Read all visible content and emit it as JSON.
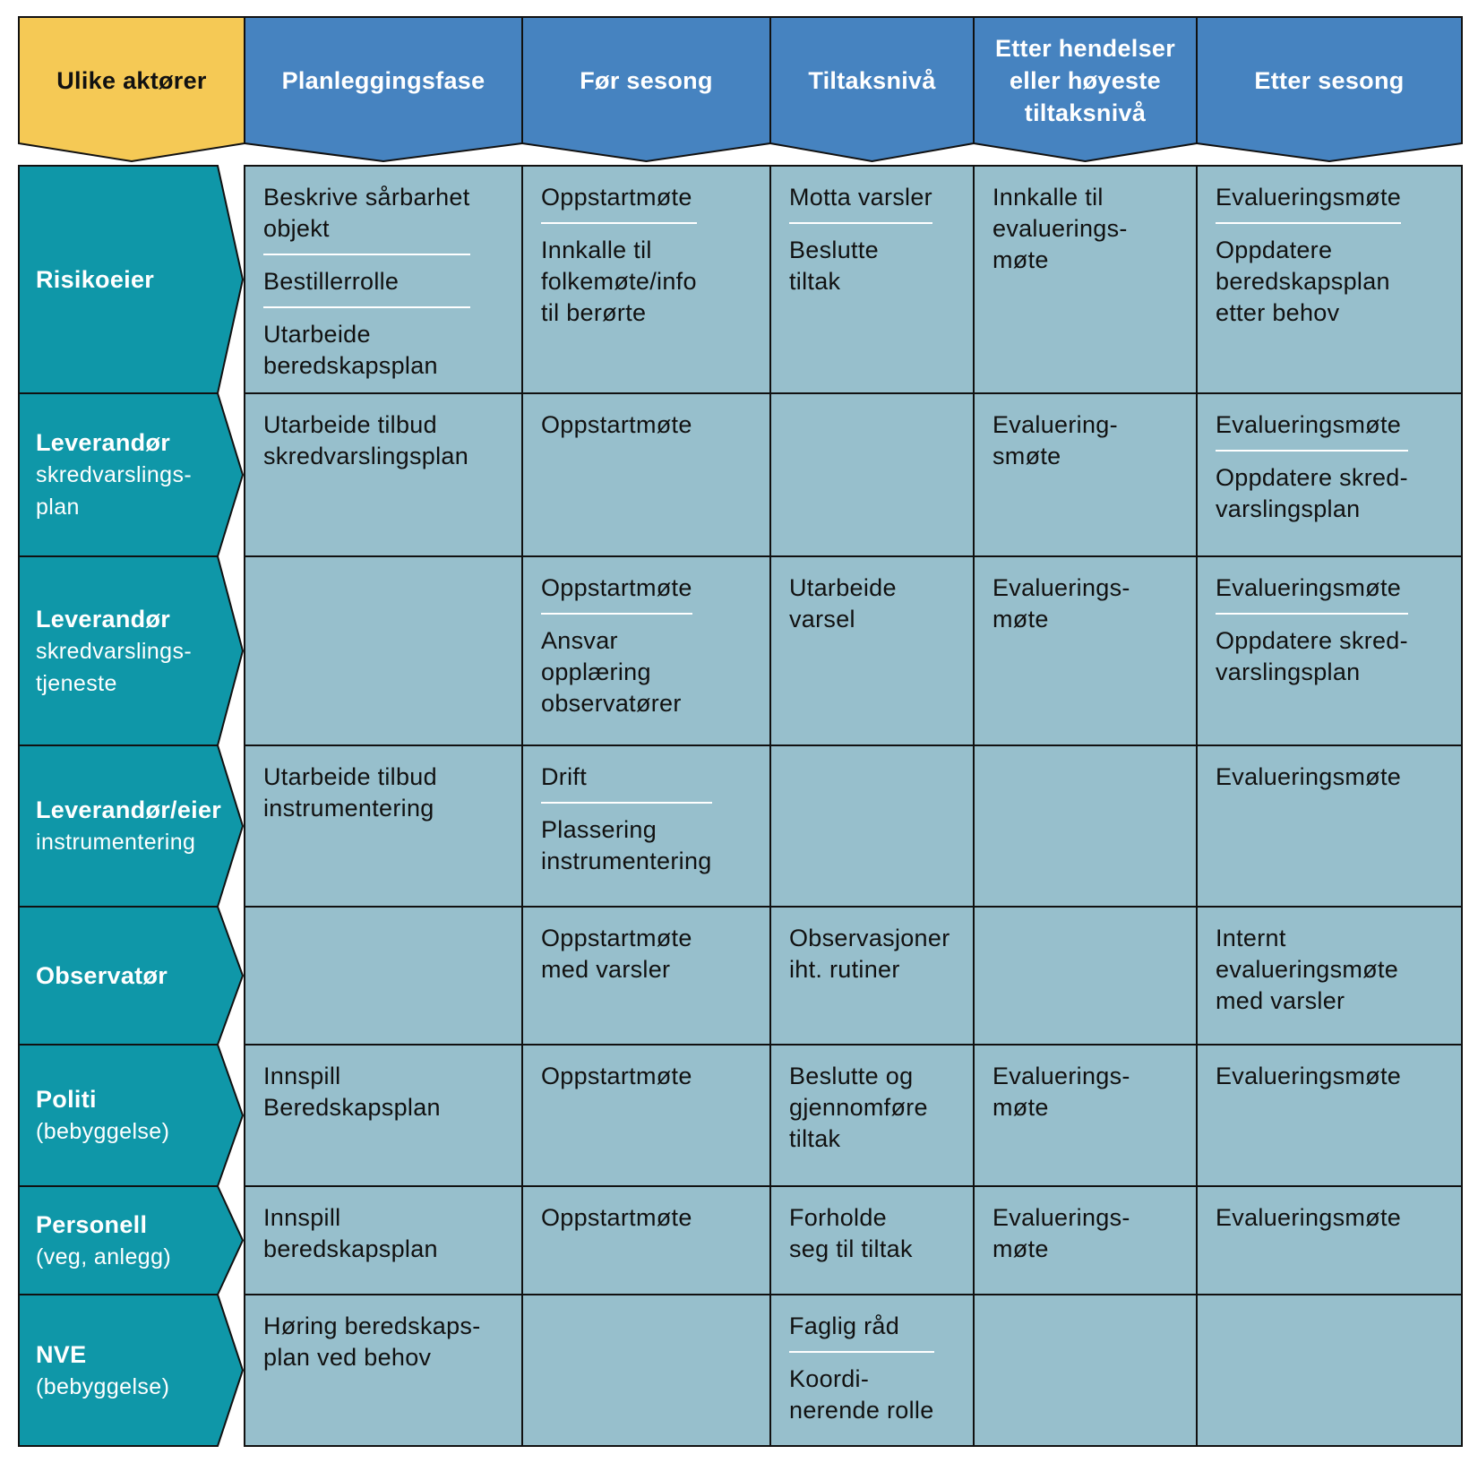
{
  "colors": {
    "actor_header": "#F5C955",
    "phase_header": "#4683C0",
    "actor_row": "#0F97A8",
    "cell": "#97BFCC",
    "border": "#111111",
    "separator": "#FFFFFF"
  },
  "header": {
    "actors_label": "Ulike aktører",
    "phases": [
      "Planleggingsfase",
      "Før sesong",
      "Tiltaksnivå",
      "Etter hendelser\neller høyeste\ntiltaksnivå",
      "Etter sesong"
    ]
  },
  "rows": [
    {
      "name": "Risikoeier",
      "sub": "",
      "cells": [
        [
          "Beskrive sårbarhet\nobjekt",
          "Bestillerrolle",
          "Utarbeide\nberedskapsplan"
        ],
        [
          "Oppstartmøte",
          "Innkalle til\nfolkemøte/info\ntil berørte"
        ],
        [
          "Motta varsler",
          "Beslutte\ntiltak"
        ],
        [
          "Innkalle til\nevaluerings-\nmøte"
        ],
        [
          "Evalueringsmøte",
          "Oppdatere\nberedskapsplan\netter behov"
        ]
      ]
    },
    {
      "name": "Leverandør",
      "sub": "skredvarslings-\nplan",
      "cells": [
        [
          "Utarbeide tilbud\nskredvarslingsplan"
        ],
        [
          "Oppstartmøte"
        ],
        [],
        [
          "Evaluering-\nsmøte"
        ],
        [
          "Evalueringsmøte",
          "Oppdatere skred-\nvarslingsplan"
        ]
      ]
    },
    {
      "name": "Leverandør",
      "sub": "skredvarslings-\ntjeneste",
      "cells": [
        [],
        [
          "Oppstartmøte",
          "Ansvar\nopplæring\nobservatører"
        ],
        [
          "Utarbeide\nvarsel"
        ],
        [
          "Evaluerings-\nmøte"
        ],
        [
          "Evalueringsmøte",
          "Oppdatere skred-\nvarslingsplan"
        ]
      ]
    },
    {
      "name": "Leverandør/eier",
      "sub": "instrumentering",
      "cells": [
        [
          "Utarbeide tilbud\ninstrumentering"
        ],
        [
          "Drift",
          "Plassering\ninstrumentering"
        ],
        [],
        [],
        [
          "Evalueringsmøte"
        ]
      ]
    },
    {
      "name": "Observatør",
      "sub": "",
      "cells": [
        [],
        [
          "Oppstartmøte\nmed varsler"
        ],
        [
          "Observasjoner\niht. rutiner"
        ],
        [],
        [
          "Internt\nevalueringsmøte\nmed varsler"
        ]
      ]
    },
    {
      "name": "Politi",
      "sub": "(bebyggelse)",
      "cells": [
        [
          "Innspill\nBeredskapsplan"
        ],
        [
          "Oppstartmøte"
        ],
        [
          "Beslutte og\ngjennomføre\ntiltak"
        ],
        [
          "Evaluerings-\nmøte"
        ],
        [
          "Evalueringsmøte"
        ]
      ]
    },
    {
      "name": "Personell",
      "sub": "(veg, anlegg)",
      "cells": [
        [
          "Innspill\nberedskapsplan"
        ],
        [
          "Oppstartmøte"
        ],
        [
          "Forholde\nseg til tiltak"
        ],
        [
          "Evaluerings-\nmøte"
        ],
        [
          "Evalueringsmøte"
        ]
      ]
    },
    {
      "name": "NVE",
      "sub": "(bebyggelse)",
      "cells": [
        [
          "Høring beredskaps-\nplan ved behov"
        ],
        [],
        [
          "Faglig råd",
          "Koordi-\nnerende rolle"
        ],
        [],
        []
      ]
    }
  ]
}
